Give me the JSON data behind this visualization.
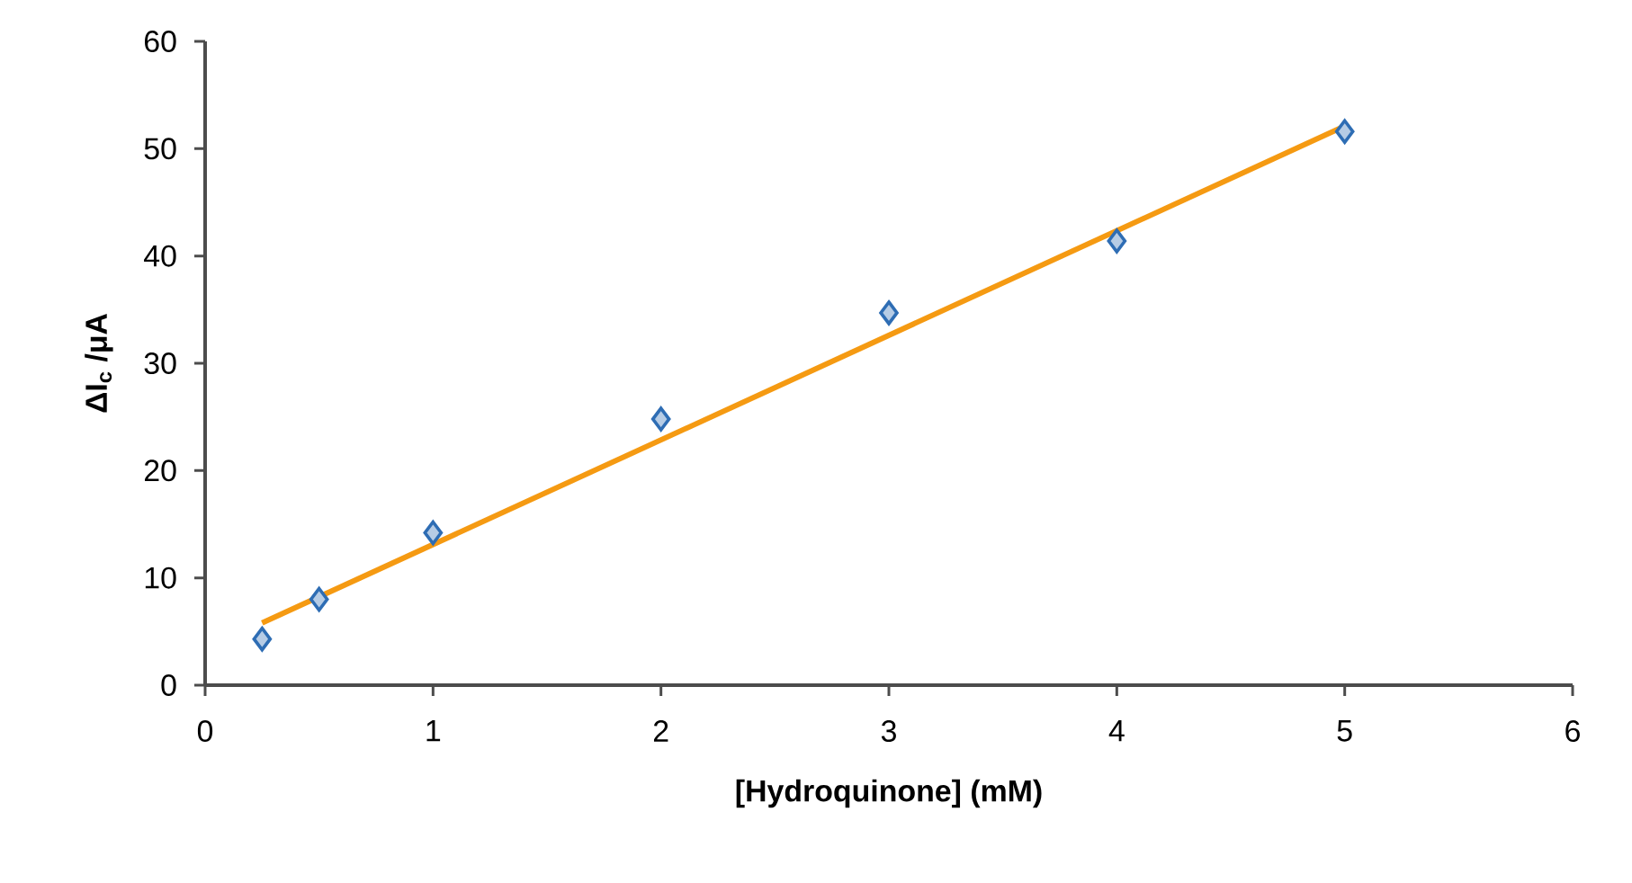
{
  "chart_data": {
    "type": "scatter",
    "xlabel": "[Hydroquinone] (mM)",
    "ylabel": "ΔI$_{c}$ /μA",
    "xlim": [
      0,
      6
    ],
    "xticks": [
      0,
      1,
      2,
      3,
      4,
      5,
      6
    ],
    "ylim": [
      0,
      60
    ],
    "yticks": [
      0,
      10,
      20,
      30,
      40,
      50,
      60
    ],
    "grid": false,
    "series": [
      {
        "marker": "diamond",
        "color": "#2e6db4",
        "x": [
          0.25,
          0.5,
          1,
          2,
          3,
          4,
          5
        ],
        "values": [
          4.3,
          8.0,
          14.2,
          24.8,
          34.7,
          41.4,
          51.6
        ]
      },
      {
        "type": "line",
        "marker": "none",
        "color": "#f59a12",
        "x": [
          0.25,
          5
        ],
        "values": [
          5.8,
          52.1
        ]
      }
    ]
  }
}
